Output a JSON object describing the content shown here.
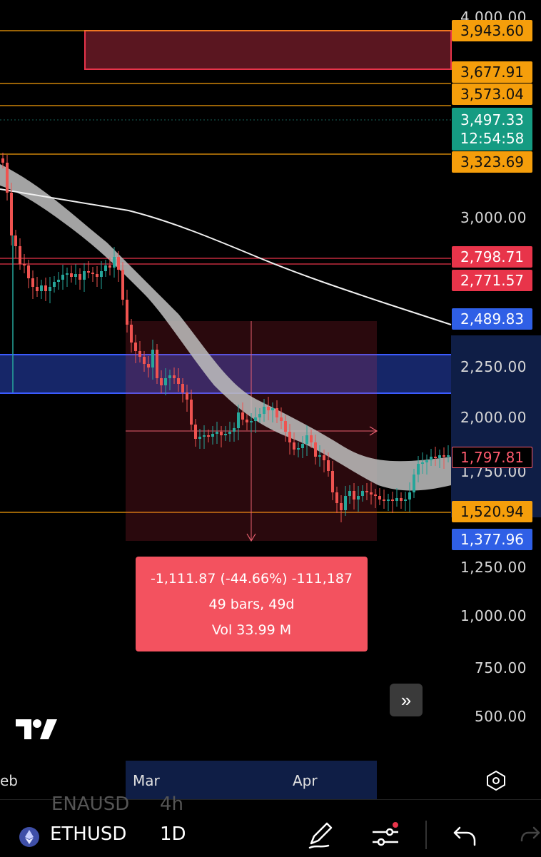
{
  "price_axis": {
    "labels": [
      "4,000.00",
      "3,000.00",
      "2,250.00",
      "2,000.00",
      "1,250.00",
      "1,000.00",
      "750.00",
      "500.00"
    ],
    "partial_label": "1,750.00"
  },
  "price_tags": [
    {
      "value": "3,943.60",
      "style": "orange"
    },
    {
      "value": "3,677.91",
      "style": "orange"
    },
    {
      "value": "3,573.04",
      "style": "orange"
    },
    {
      "value": "3,497.33",
      "countdown": "12:54:58",
      "style": "green"
    },
    {
      "value": "3,323.69",
      "style": "orange"
    },
    {
      "value": "2,798.71",
      "style": "red"
    },
    {
      "value": "2,771.57",
      "style": "red"
    },
    {
      "value": "2,489.83",
      "style": "blue"
    },
    {
      "value": "1,797.81",
      "style": "outline"
    },
    {
      "value": "1,520.94",
      "style": "orange"
    },
    {
      "value": "1,377.96",
      "style": "blue"
    }
  ],
  "measurement": {
    "change": "-1,111.87 (-44.66%) -111,187",
    "bars": "49 bars, 49d",
    "volume": "Vol 33.99 M"
  },
  "time_axis": {
    "labels": [
      "eb",
      "Mar",
      "Apr"
    ]
  },
  "symbol_bar": {
    "prev_symbol": "ENAUSD",
    "prev_interval": "4h",
    "symbol": "ETHUSD",
    "interval": "1D"
  },
  "icons": {
    "forward": "chevron-double-right-icon",
    "settings": "hexagon-settings-icon",
    "draw": "pencil-icon",
    "indicators": "sliders-icon",
    "undo": "undo-icon",
    "redo": "redo-icon"
  },
  "colors": {
    "bull": "#26a69a",
    "bear": "#ef5350",
    "orange_line": "#f59e0b",
    "red_zone": "#5a1620",
    "blue_zone": "#1a2d7a",
    "measure_fill": "#3a1418",
    "tag_red": "#e8344a",
    "tag_blue": "#2f5fe6"
  }
}
